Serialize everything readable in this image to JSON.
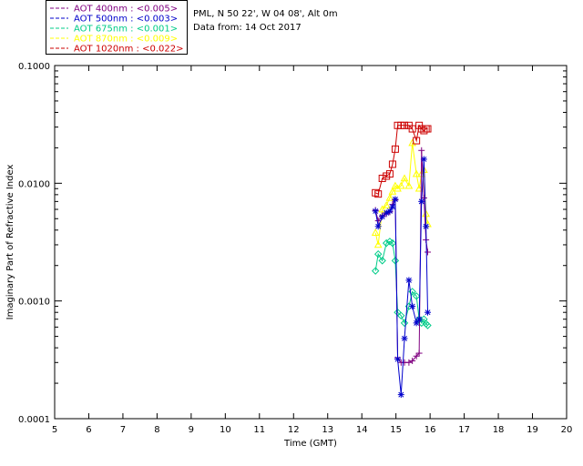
{
  "info": {
    "site": "PML, N 50 22', W 04 08', Alt 0m",
    "date": "Data from: 14 Oct 2017"
  },
  "chart_data": {
    "type": "line",
    "xlabel": "Time (GMT)",
    "ylabel": "Imaginary Part of Refractive Index",
    "xlim": [
      5,
      20
    ],
    "ylim": [
      0.0001,
      0.1
    ],
    "yscale": "log",
    "x_ticks": [
      5,
      6,
      7,
      8,
      9,
      10,
      11,
      12,
      13,
      14,
      15,
      16,
      17,
      18,
      19,
      20
    ],
    "y_ticks": [
      0.0001,
      0.001,
      0.01,
      0.1
    ],
    "y_tick_labels": [
      "0.0001",
      "0.0010",
      "0.0100",
      "0.1000"
    ],
    "legend_position": "top-left (outside)",
    "series": [
      {
        "name": "AOT  400nm : <0.005>",
        "color": "#800080",
        "marker": "plus",
        "x": [
          14.4,
          14.48,
          14.6,
          14.72,
          14.82,
          14.9,
          14.98,
          15.05,
          15.15,
          15.25,
          15.38,
          15.48,
          15.6,
          15.68,
          15.75,
          15.82,
          15.88,
          15.93
        ],
        "y": [
          0.0059,
          0.0048,
          0.0053,
          0.0055,
          0.0057,
          0.0066,
          0.0072,
          0.00033,
          0.0003,
          0.0003,
          0.0003,
          0.00031,
          0.00034,
          0.00036,
          0.019,
          0.0075,
          0.0033,
          0.0026
        ]
      },
      {
        "name": "AOT  500nm : <0.003>",
        "color": "#0000cc",
        "marker": "asterisk",
        "x": [
          14.4,
          14.48,
          14.6,
          14.72,
          14.82,
          14.9,
          14.98,
          15.05,
          15.15,
          15.25,
          15.38,
          15.48,
          15.6,
          15.68,
          15.75,
          15.82,
          15.88,
          15.93
        ],
        "y": [
          0.0058,
          0.0043,
          0.0052,
          0.0056,
          0.0058,
          0.0063,
          0.0073,
          0.00032,
          0.00016,
          0.00048,
          0.0015,
          0.0009,
          0.00065,
          0.0007,
          0.007,
          0.016,
          0.0043,
          0.0008
        ]
      },
      {
        "name": "AOT  675nm : <0.001>",
        "color": "#00cc88",
        "marker": "diamond",
        "x": [
          14.4,
          14.48,
          14.6,
          14.72,
          14.82,
          14.9,
          14.98,
          15.05,
          15.15,
          15.25,
          15.38,
          15.48,
          15.6,
          15.68,
          15.75,
          15.82,
          15.88,
          15.93
        ],
        "y": [
          0.0018,
          0.0025,
          0.0022,
          0.0031,
          0.0032,
          0.0031,
          0.0022,
          0.0008,
          0.00075,
          0.00065,
          0.0009,
          0.0012,
          0.0011,
          0.0007,
          0.00065,
          0.0007,
          0.00064,
          0.00062
        ]
      },
      {
        "name": "AOT  870nm : <0.009>",
        "color": "#ffff00",
        "marker": "triangle",
        "x": [
          14.4,
          14.48,
          14.6,
          14.72,
          14.82,
          14.9,
          14.98,
          15.05,
          15.15,
          15.25,
          15.38,
          15.48,
          15.6,
          15.68,
          15.75,
          15.82,
          15.88,
          15.93
        ],
        "y": [
          0.0038,
          0.003,
          0.006,
          0.0065,
          0.0075,
          0.0085,
          0.0095,
          0.009,
          0.0095,
          0.011,
          0.0095,
          0.022,
          0.012,
          0.009,
          0.012,
          0.013,
          0.0055,
          0.0045
        ]
      },
      {
        "name": "AOT 1020nm : <0.022>",
        "color": "#cc0000",
        "marker": "square",
        "x": [
          14.4,
          14.48,
          14.6,
          14.72,
          14.82,
          14.9,
          14.98,
          15.05,
          15.15,
          15.25,
          15.38,
          15.48,
          15.6,
          15.68,
          15.75,
          15.82,
          15.88,
          15.93
        ],
        "y": [
          0.0083,
          0.0081,
          0.011,
          0.0115,
          0.012,
          0.0145,
          0.0195,
          0.031,
          0.031,
          0.031,
          0.031,
          0.029,
          0.023,
          0.031,
          0.029,
          0.028,
          0.029,
          0.029
        ]
      }
    ]
  }
}
